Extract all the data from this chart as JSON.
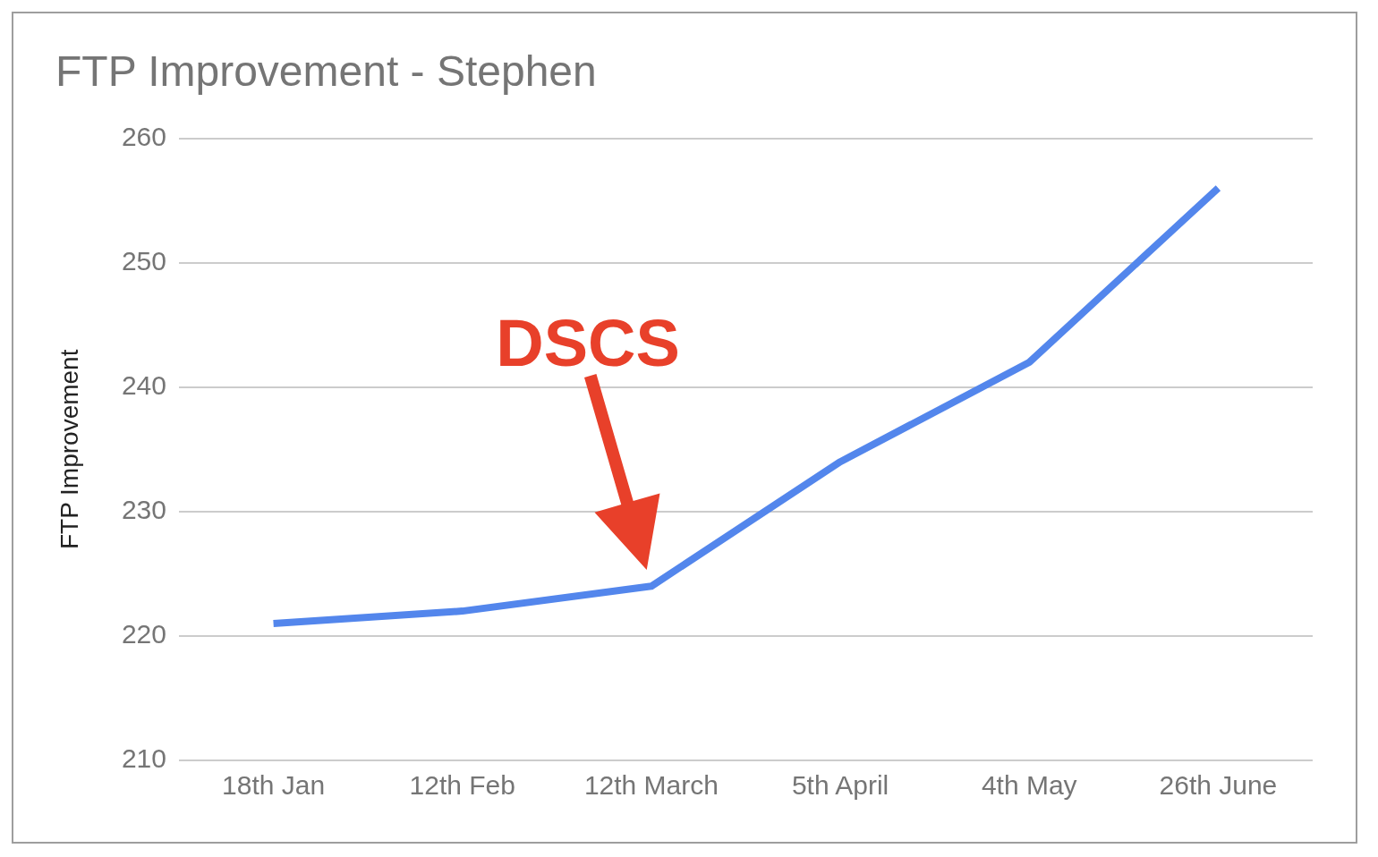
{
  "chart_data": {
    "type": "line",
    "title": "FTP Improvement - Stephen",
    "ylabel": "FTP Improvement",
    "categories": [
      "18th Jan",
      "12th Feb",
      "12th March",
      "5th April",
      "4th May",
      "26th June"
    ],
    "series": [
      {
        "color": "#5386ec",
        "values": [
          221,
          222,
          224,
          234,
          242,
          256
        ]
      }
    ],
    "ylim": [
      210,
      260
    ],
    "yticks": [
      210,
      220,
      230,
      240,
      250,
      260
    ],
    "grid": "y",
    "annotations": [
      "DSCS"
    ]
  }
}
